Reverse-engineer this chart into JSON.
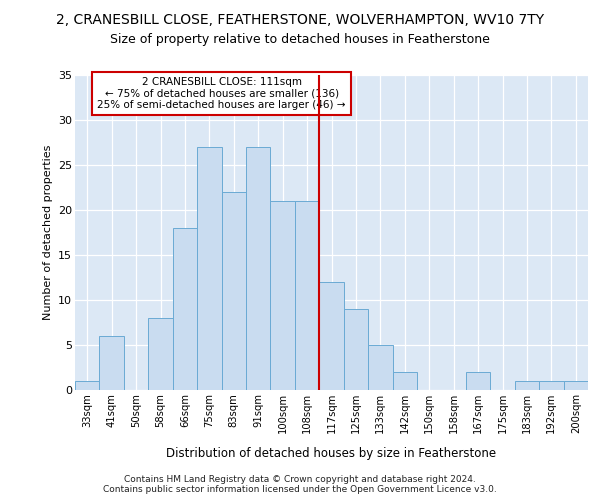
{
  "title_line1": "2, CRANESBILL CLOSE, FEATHERSTONE, WOLVERHAMPTON, WV10 7TY",
  "title_line2": "Size of property relative to detached houses in Featherstone",
  "xlabel": "Distribution of detached houses by size in Featherstone",
  "ylabel": "Number of detached properties",
  "categories": [
    "33sqm",
    "41sqm",
    "50sqm",
    "58sqm",
    "66sqm",
    "75sqm",
    "83sqm",
    "91sqm",
    "100sqm",
    "108sqm",
    "117sqm",
    "125sqm",
    "133sqm",
    "142sqm",
    "150sqm",
    "158sqm",
    "167sqm",
    "175sqm",
    "183sqm",
    "192sqm",
    "200sqm"
  ],
  "values": [
    1,
    6,
    0,
    8,
    18,
    27,
    22,
    27,
    21,
    21,
    12,
    9,
    5,
    2,
    0,
    0,
    2,
    0,
    1,
    1,
    1
  ],
  "bar_color": "#c9dcf0",
  "bar_edge_color": "#6aaad4",
  "vline_pos": 9.5,
  "vline_color": "#cc0000",
  "annotation_title": "2 CRANESBILL CLOSE: 111sqm",
  "annotation_line2": "← 75% of detached houses are smaller (136)",
  "annotation_line3": "25% of semi-detached houses are larger (46) →",
  "annotation_box_color": "#cc0000",
  "ylim": [
    0,
    35
  ],
  "yticks": [
    0,
    5,
    10,
    15,
    20,
    25,
    30,
    35
  ],
  "background_color": "#dce8f5",
  "footer_line1": "Contains HM Land Registry data © Crown copyright and database right 2024.",
  "footer_line2": "Contains public sector information licensed under the Open Government Licence v3.0."
}
